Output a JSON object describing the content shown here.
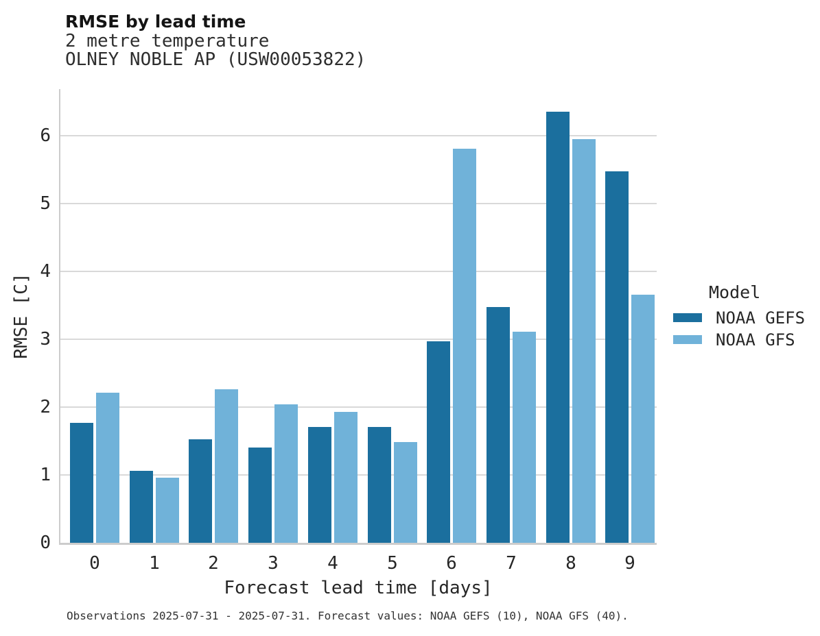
{
  "header": {
    "title": "RMSE by lead time",
    "subtitle": "2 metre temperature",
    "station": "OLNEY NOBLE AP (USW00053822)"
  },
  "chart_data": {
    "type": "bar",
    "title": "RMSE by lead time",
    "subtitle": "2 metre temperature",
    "station": "OLNEY NOBLE AP (USW00053822)",
    "categories": [
      "0",
      "1",
      "2",
      "3",
      "4",
      "5",
      "6",
      "7",
      "8",
      "9"
    ],
    "series": [
      {
        "name": "NOAA GEFS",
        "color": "#1b6f9e",
        "values": [
          1.77,
          1.06,
          1.53,
          1.4,
          1.71,
          1.71,
          2.97,
          3.47,
          6.35,
          5.47
        ]
      },
      {
        "name": "NOAA GFS",
        "color": "#70b2d9",
        "values": [
          2.21,
          0.96,
          2.26,
          2.04,
          1.93,
          1.48,
          5.81,
          3.11,
          5.95,
          3.66
        ]
      }
    ],
    "xlabel": "Forecast lead time [days]",
    "ylabel": "RMSE [C]",
    "ylim": [
      0,
      6.69
    ],
    "yticks": [
      0,
      1,
      2,
      3,
      4,
      5,
      6
    ],
    "grid": true,
    "legend_title": "Model",
    "legend_position": "right"
  },
  "legend": {
    "title": "Model",
    "entries": [
      {
        "label": "NOAA GEFS",
        "color": "#1b6f9e"
      },
      {
        "label": "NOAA GFS",
        "color": "#70b2d9"
      }
    ]
  },
  "caption": "Observations 2025-07-31 - 2025-07-31. Forecast values: NOAA GEFS (10), NOAA GFS (40)."
}
